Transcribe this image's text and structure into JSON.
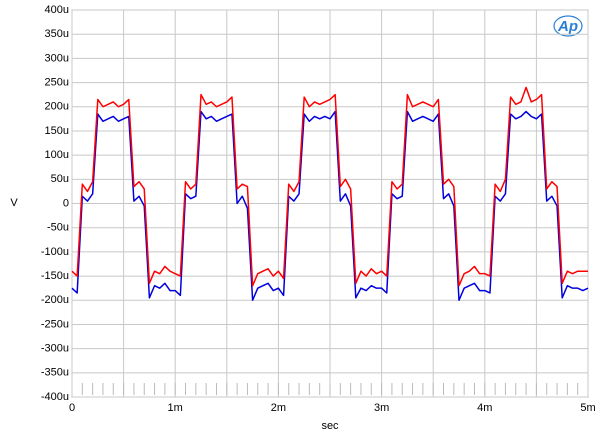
{
  "chart_data": {
    "type": "line",
    "xlabel": "sec",
    "ylabel": "V",
    "logo": "Ap",
    "xlim": [
      0,
      0.005
    ],
    "ylim": [
      -0.0004,
      0.0004
    ],
    "xticks": [
      0,
      {
        "value": 0.001,
        "label": "1m"
      },
      {
        "value": 0.002,
        "label": "2m"
      },
      {
        "value": 0.003,
        "label": "3m"
      },
      {
        "value": 0.004,
        "label": "4m"
      },
      {
        "value": 0.005,
        "label": "5m"
      }
    ],
    "xminor_grid": [
      0.0005,
      0.0015,
      0.0025,
      0.0035,
      0.0045
    ],
    "yticks": [
      {
        "value": -0.0004,
        "label": "-400u"
      },
      {
        "value": -0.00035,
        "label": "-350u"
      },
      {
        "value": -0.0003,
        "label": "-300u"
      },
      {
        "value": -0.00025,
        "label": "-250u"
      },
      {
        "value": -0.0002,
        "label": "-200u"
      },
      {
        "value": -0.00015,
        "label": "-150u"
      },
      {
        "value": -0.0001,
        "label": "-100u"
      },
      {
        "value": -5e-05,
        "label": "-50u"
      },
      0,
      {
        "value": 5e-05,
        "label": "50u"
      },
      {
        "value": 0.0001,
        "label": "100u"
      },
      {
        "value": 0.00015,
        "label": "150u"
      },
      {
        "value": 0.0002,
        "label": "200u"
      },
      {
        "value": 0.00025,
        "label": "250u"
      },
      {
        "value": 0.0003,
        "label": "300u"
      },
      {
        "value": 0.00035,
        "label": "350u"
      },
      {
        "value": 0.0004,
        "label": "400u"
      }
    ],
    "grid": true,
    "x": [
      0,
      5e-05,
      0.0001,
      0.00015,
      0.0002,
      0.00025,
      0.0003,
      0.00035,
      0.0004,
      0.00045,
      0.0005,
      0.00055,
      0.0006,
      0.00065,
      0.0007,
      0.00075,
      0.0008,
      0.00085,
      0.0009,
      0.00095,
      0.001,
      0.00105,
      0.0011,
      0.00115,
      0.0012,
      0.00125,
      0.0013,
      0.00135,
      0.0014,
      0.00145,
      0.0015,
      0.00155,
      0.0016,
      0.00165,
      0.0017,
      0.00175,
      0.0018,
      0.00185,
      0.0019,
      0.00195,
      0.002,
      0.00205,
      0.0021,
      0.00215,
      0.0022,
      0.00225,
      0.0023,
      0.00235,
      0.0024,
      0.00245,
      0.0025,
      0.00255,
      0.0026,
      0.00265,
      0.0027,
      0.00275,
      0.0028,
      0.00285,
      0.0029,
      0.00295,
      0.003,
      0.00305,
      0.0031,
      0.00315,
      0.0032,
      0.00325,
      0.0033,
      0.00335,
      0.0034,
      0.00345,
      0.0035,
      0.00355,
      0.0036,
      0.00365,
      0.0037,
      0.00375,
      0.0038,
      0.00385,
      0.0039,
      0.00395,
      0.004,
      0.00405,
      0.0041,
      0.00415,
      0.0042,
      0.00425,
      0.0043,
      0.00435,
      0.0044,
      0.00445,
      0.0045,
      0.00455,
      0.0046,
      0.00465,
      0.0047,
      0.00475,
      0.0048,
      0.00485,
      0.0049,
      0.00495,
      0.005
    ],
    "series": [
      {
        "color": "#ff0000",
        "values": [
          -0.00014,
          -0.00015,
          4e-05,
          2.5e-05,
          4.5e-05,
          0.000215,
          0.0002,
          0.000205,
          0.00021,
          0.0002,
          0.000205,
          0.000215,
          3.5e-05,
          4.5e-05,
          3e-05,
          -0.000165,
          -0.00014,
          -0.000145,
          -0.00013,
          -0.00014,
          -0.000145,
          -0.00015,
          4.5e-05,
          3e-05,
          4e-05,
          0.000225,
          0.000205,
          0.00021,
          0.0002,
          0.000205,
          0.00021,
          0.00022,
          3e-05,
          4e-05,
          3.5e-05,
          -0.00017,
          -0.000145,
          -0.00014,
          -0.000135,
          -0.00015,
          -0.00014,
          -0.000155,
          4e-05,
          2.5e-05,
          4.5e-05,
          0.00022,
          0.0002,
          0.00021,
          0.000205,
          0.00021,
          0.000215,
          0.000225,
          3.5e-05,
          5e-05,
          3e-05,
          -0.000165,
          -0.00014,
          -0.00015,
          -0.000135,
          -0.000145,
          -0.00014,
          -0.00015,
          4.5e-05,
          3e-05,
          4e-05,
          0.000225,
          0.0002,
          0.000205,
          0.00021,
          0.000205,
          0.0002,
          0.000215,
          4e-05,
          5e-05,
          3.5e-05,
          -0.00017,
          -0.000145,
          -0.00014,
          -0.00013,
          -0.000145,
          -0.000145,
          -0.00015,
          4e-05,
          2.5e-05,
          5e-05,
          0.00022,
          0.000205,
          0.00021,
          0.00024,
          0.00021,
          0.000215,
          0.000225,
          3e-05,
          4.5e-05,
          3.5e-05,
          -0.000165,
          -0.00014,
          -0.000145,
          -0.00014,
          -0.00014,
          -0.00014
        ]
      },
      {
        "color": "#0000dd",
        "values": [
          -0.000175,
          -0.000185,
          1.5e-05,
          5e-06,
          2e-05,
          0.000185,
          0.00017,
          0.000175,
          0.00018,
          0.00017,
          0.000175,
          0.00018,
          5e-06,
          1.5e-05,
          -5e-06,
          -0.000195,
          -0.00017,
          -0.000175,
          -0.000165,
          -0.00018,
          -0.00018,
          -0.00019,
          2e-05,
          1e-05,
          1.5e-05,
          0.00019,
          0.000175,
          0.00018,
          0.00017,
          0.000175,
          0.00018,
          0.000185,
          0.0,
          1.5e-05,
          -1e-05,
          -0.0002,
          -0.000175,
          -0.00017,
          -0.000165,
          -0.00018,
          -0.000175,
          -0.00019,
          1.5e-05,
          5e-06,
          2e-05,
          0.000185,
          0.00017,
          0.00018,
          0.000175,
          0.00018,
          0.000175,
          0.00019,
          5e-06,
          2e-05,
          -5e-06,
          -0.000195,
          -0.000175,
          -0.00018,
          -0.00017,
          -0.000175,
          -0.000175,
          -0.000185,
          2e-05,
          1e-05,
          1.5e-05,
          0.00019,
          0.00017,
          0.000175,
          0.00018,
          0.000175,
          0.00017,
          0.000185,
          1e-05,
          2e-05,
          -5e-06,
          -0.0002,
          -0.000175,
          -0.00017,
          -0.000165,
          -0.00018,
          -0.00018,
          -0.000185,
          1.5e-05,
          5e-06,
          2e-05,
          0.000185,
          0.000175,
          0.00018,
          0.00019,
          0.00018,
          0.000175,
          0.000185,
          5e-06,
          1.5e-05,
          -5e-06,
          -0.000195,
          -0.00017,
          -0.000175,
          -0.000175,
          -0.00018,
          -0.000175
        ]
      }
    ]
  }
}
